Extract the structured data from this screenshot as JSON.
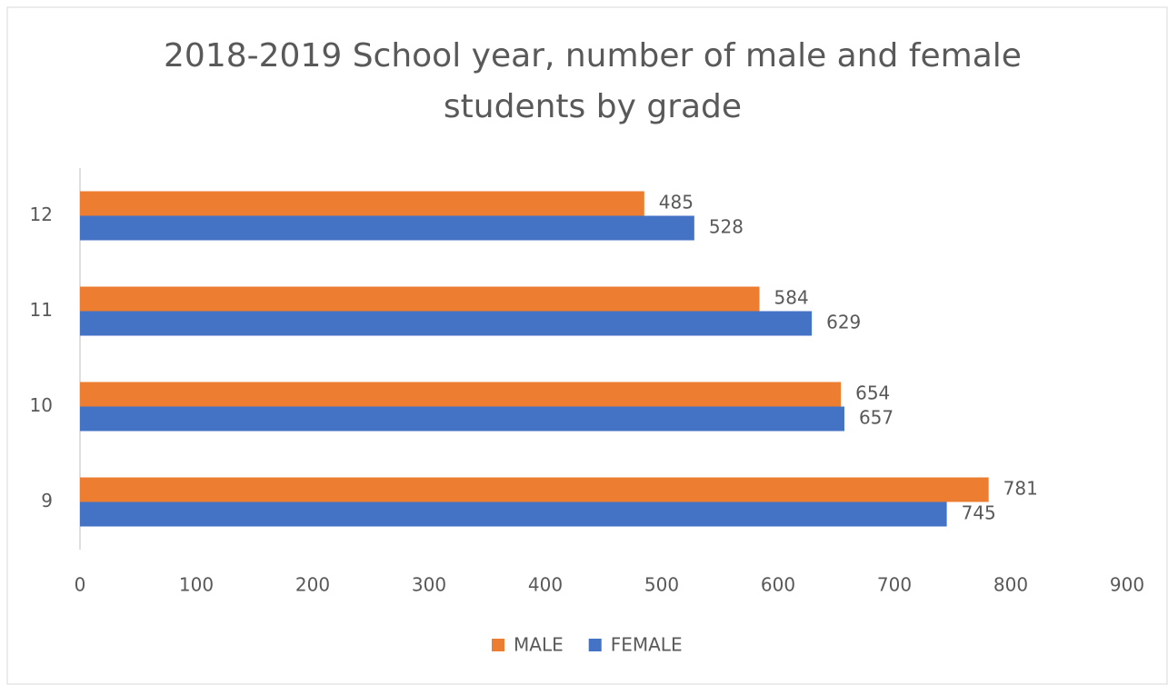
{
  "chart_data": {
    "type": "hbar",
    "title": "2018-2019 School year, number of male and female students by grade",
    "categories": [
      "9",
      "10",
      "11",
      "12"
    ],
    "series": [
      {
        "name": "MALE",
        "color": "#ed7d31",
        "values": [
          781,
          654,
          584,
          485
        ]
      },
      {
        "name": "FEMALE",
        "color": "#4472c4",
        "values": [
          745,
          657,
          629,
          528
        ]
      }
    ],
    "xlim": [
      0,
      900
    ],
    "xticks": [
      0,
      100,
      200,
      300,
      400,
      500,
      600,
      700,
      800,
      900
    ],
    "grid": false,
    "legend": "bottom"
  }
}
